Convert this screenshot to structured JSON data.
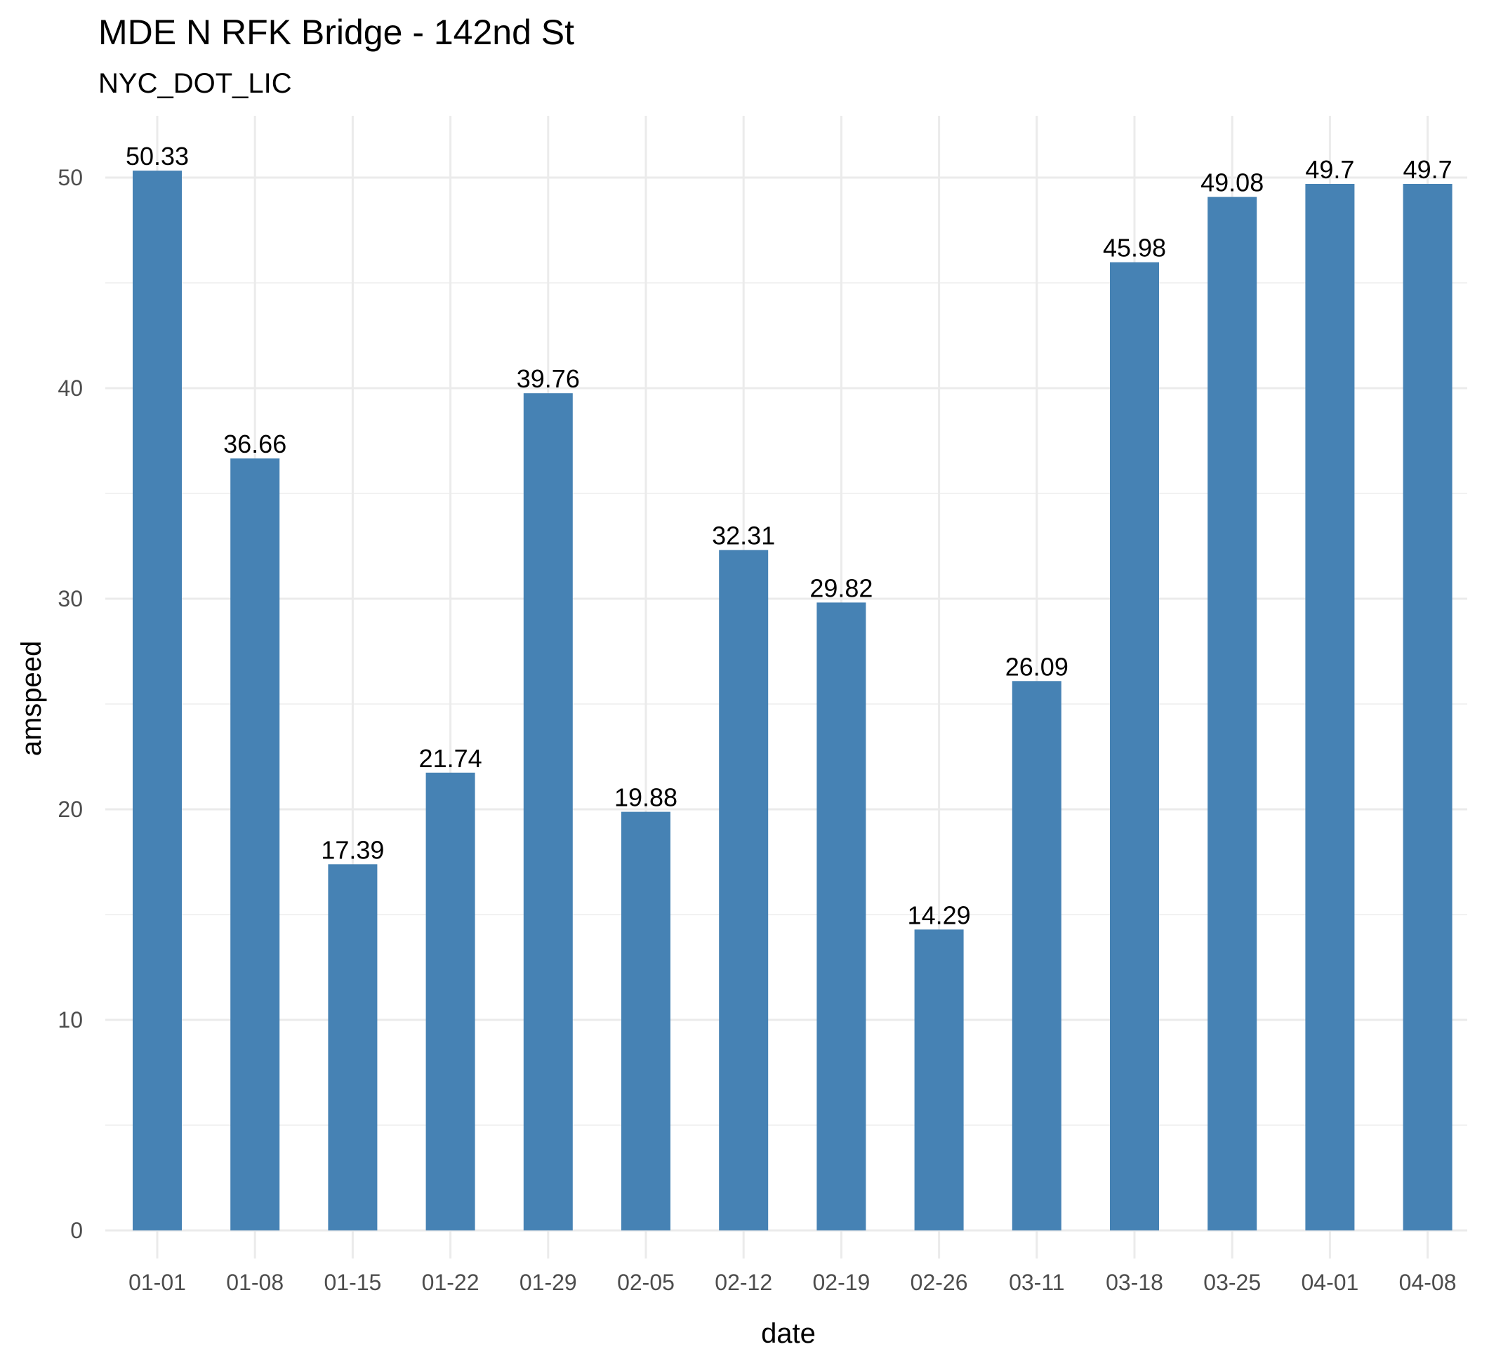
{
  "chart_data": {
    "type": "bar",
    "title": "MDE N RFK Bridge - 142nd St",
    "subtitle": "NYC_DOT_LIC",
    "xlabel": "date",
    "ylabel": "amspeed",
    "categories": [
      "01-01",
      "01-08",
      "01-15",
      "01-22",
      "01-29",
      "02-05",
      "02-12",
      "02-19",
      "02-26",
      "03-11",
      "03-18",
      "03-25",
      "04-01",
      "04-08"
    ],
    "values": [
      50.33,
      36.66,
      17.39,
      21.74,
      39.76,
      19.88,
      32.31,
      29.82,
      14.29,
      26.09,
      45.98,
      49.08,
      49.7,
      49.7
    ],
    "data_labels": [
      "50.33",
      "36.66",
      "17.39",
      "21.74",
      "39.76",
      "19.88",
      "32.31",
      "29.82",
      "14.29",
      "26.09",
      "45.98",
      "49.08",
      "49.7",
      "49.7"
    ],
    "ylim": [
      0,
      52
    ],
    "yticks": [
      0,
      10,
      20,
      30,
      40,
      50
    ],
    "grid": true,
    "legend": "none",
    "bar_color": "#4682b4"
  }
}
